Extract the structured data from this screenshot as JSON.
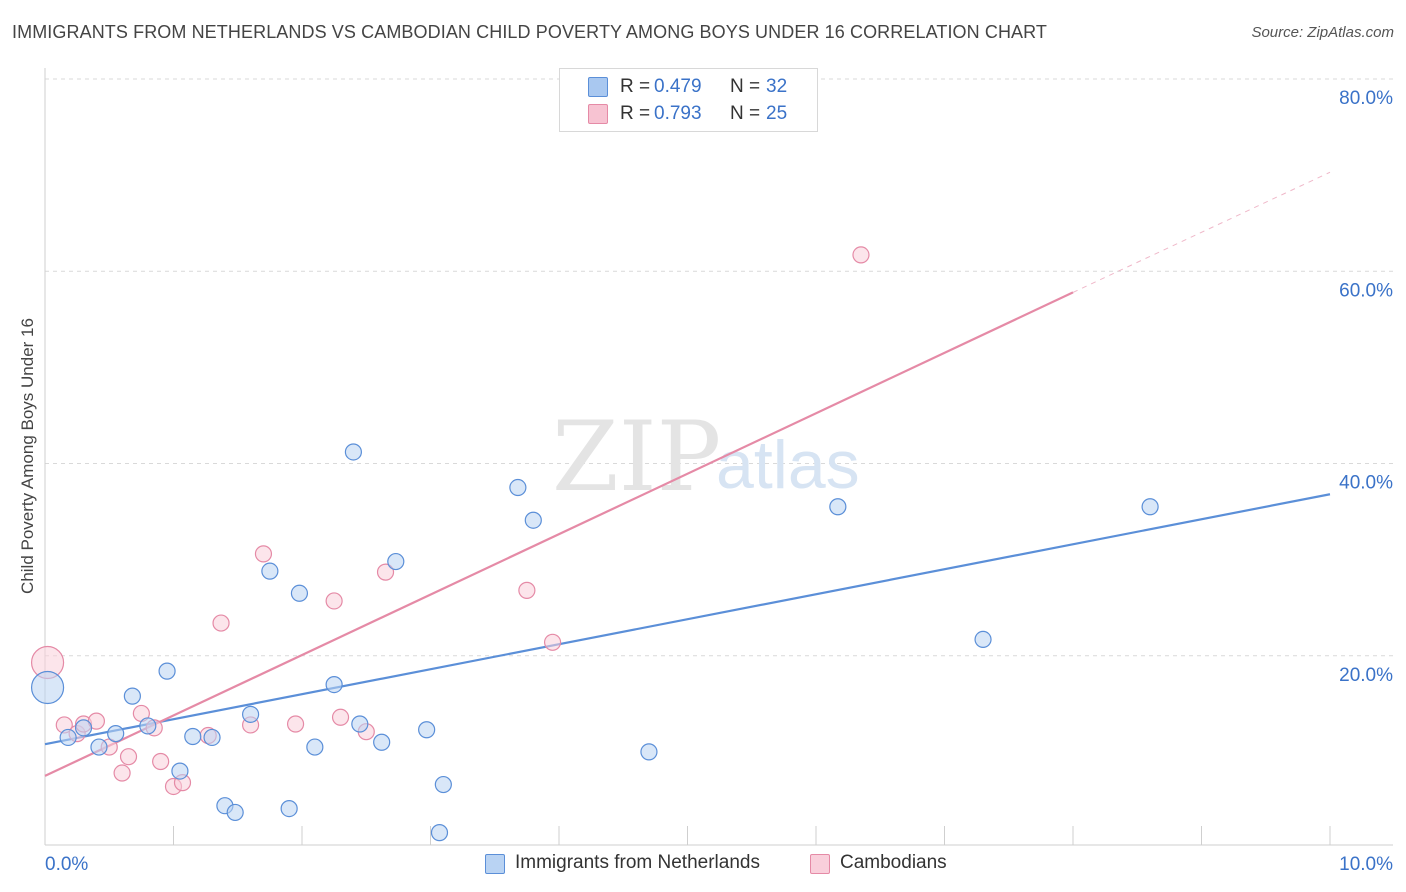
{
  "title": "IMMIGRANTS FROM NETHERLANDS VS CAMBODIAN CHILD POVERTY AMONG BOYS UNDER 16 CORRELATION CHART",
  "source": "Source: ZipAtlas.com",
  "watermark": {
    "zip": "ZIP",
    "atlas": "atlas"
  },
  "legend": {
    "r_label": "R =",
    "n_label": "N =",
    "rows": [
      {
        "r": "0.479",
        "n": "32",
        "color": "#a9c8f0",
        "border": "#5b8fd8"
      },
      {
        "r": "0.793",
        "n": "25",
        "color": "#f7c3d2",
        "border": "#e58aa6"
      }
    ]
  },
  "bottom_legend": [
    {
      "label": "Immigrants from Netherlands",
      "color": "#b9d3f3",
      "border": "#5b8fd8"
    },
    {
      "label": "Cambodians",
      "color": "#f9cfdb",
      "border": "#e58aa6"
    }
  ],
  "chart_data": {
    "type": "scatter",
    "title": "IMMIGRANTS FROM NETHERLANDS VS CAMBODIAN CHILD POVERTY AMONG BOYS UNDER 16 CORRELATION CHART",
    "xlabel": "",
    "ylabel": "Child Poverty Among Boys Under 16",
    "xlim": [
      0,
      10
    ],
    "ylim": [
      0,
      80
    ],
    "x_tick_labels": [
      "0.0%",
      "10.0%"
    ],
    "y_tick_labels": [
      "20.0%",
      "40.0%",
      "60.0%",
      "80.0%"
    ],
    "y_tick_values": [
      20,
      40,
      60,
      80
    ],
    "grid": "horizontal dashed",
    "legend_position": "top-center",
    "series": [
      {
        "name": "Immigrants from Netherlands",
        "color": "#5b8fd8",
        "fill": "#b9d3f3",
        "points": [
          {
            "x": 0.02,
            "y": 16.7,
            "large": true
          },
          {
            "x": 0.18,
            "y": 11.5
          },
          {
            "x": 0.3,
            "y": 12.5
          },
          {
            "x": 0.42,
            "y": 10.5
          },
          {
            "x": 0.55,
            "y": 11.9
          },
          {
            "x": 0.68,
            "y": 15.8
          },
          {
            "x": 0.8,
            "y": 12.7
          },
          {
            "x": 0.95,
            "y": 18.4
          },
          {
            "x": 1.05,
            "y": 8.0
          },
          {
            "x": 1.15,
            "y": 11.6
          },
          {
            "x": 1.3,
            "y": 11.5
          },
          {
            "x": 1.4,
            "y": 4.4
          },
          {
            "x": 1.48,
            "y": 3.7
          },
          {
            "x": 1.6,
            "y": 13.9
          },
          {
            "x": 1.75,
            "y": 28.8
          },
          {
            "x": 1.9,
            "y": 4.1
          },
          {
            "x": 1.98,
            "y": 26.5
          },
          {
            "x": 2.1,
            "y": 10.5
          },
          {
            "x": 2.25,
            "y": 17.0
          },
          {
            "x": 2.4,
            "y": 41.2
          },
          {
            "x": 2.45,
            "y": 12.9
          },
          {
            "x": 2.62,
            "y": 11.0
          },
          {
            "x": 2.73,
            "y": 29.8
          },
          {
            "x": 2.97,
            "y": 12.3
          },
          {
            "x": 3.07,
            "y": 1.6
          },
          {
            "x": 3.1,
            "y": 6.6
          },
          {
            "x": 3.68,
            "y": 37.5
          },
          {
            "x": 3.8,
            "y": 34.1
          },
          {
            "x": 4.7,
            "y": 10.0
          },
          {
            "x": 6.17,
            "y": 35.5
          },
          {
            "x": 7.3,
            "y": 21.7
          },
          {
            "x": 8.6,
            "y": 35.5
          }
        ],
        "trend": {
          "x0": 0,
          "y0": 10.8,
          "x1": 10,
          "y1": 36.8
        }
      },
      {
        "name": "Cambodians",
        "color": "#e58aa6",
        "fill": "#f9cfdb",
        "points": [
          {
            "x": 0.02,
            "y": 19.3,
            "large": true
          },
          {
            "x": 0.15,
            "y": 12.8
          },
          {
            "x": 0.25,
            "y": 11.9
          },
          {
            "x": 0.3,
            "y": 12.9
          },
          {
            "x": 0.4,
            "y": 13.2
          },
          {
            "x": 0.5,
            "y": 10.5
          },
          {
            "x": 0.6,
            "y": 7.8
          },
          {
            "x": 0.65,
            "y": 9.5
          },
          {
            "x": 0.75,
            "y": 14.0
          },
          {
            "x": 0.85,
            "y": 12.5
          },
          {
            "x": 0.9,
            "y": 9.0
          },
          {
            "x": 1.0,
            "y": 6.4
          },
          {
            "x": 1.07,
            "y": 6.8
          },
          {
            "x": 1.27,
            "y": 11.7
          },
          {
            "x": 1.37,
            "y": 23.4
          },
          {
            "x": 1.6,
            "y": 12.8
          },
          {
            "x": 1.7,
            "y": 30.6
          },
          {
            "x": 1.95,
            "y": 12.9
          },
          {
            "x": 2.25,
            "y": 25.7
          },
          {
            "x": 2.3,
            "y": 13.6
          },
          {
            "x": 2.5,
            "y": 12.1
          },
          {
            "x": 2.65,
            "y": 28.7
          },
          {
            "x": 3.75,
            "y": 26.8
          },
          {
            "x": 3.95,
            "y": 21.4
          },
          {
            "x": 6.35,
            "y": 61.7
          }
        ],
        "trend": {
          "x0": 0,
          "y0": 7.5,
          "x1": 8.0,
          "y1": 57.8
        },
        "trend_extension": {
          "x0": 8.0,
          "y0": 57.8,
          "x1": 10,
          "y1": 70.3
        }
      }
    ]
  }
}
